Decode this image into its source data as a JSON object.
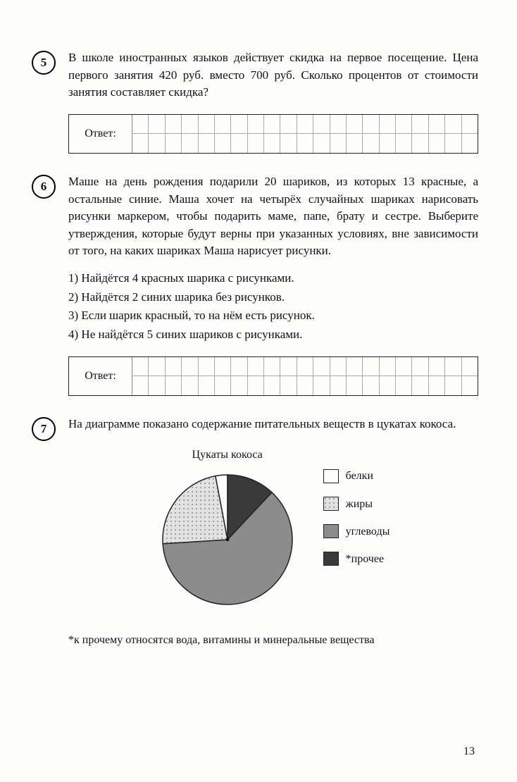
{
  "problems": {
    "p5": {
      "number": "5",
      "text": "В школе иностранных языков действует скидка на первое посещение. Цена первого занятия 420 руб. вместо 700 руб. Сколько процентов от стоимости занятия составляет скидка?",
      "answer_label": "Ответ:"
    },
    "p6": {
      "number": "6",
      "text": "Маше на день рождения подарили 20 шариков, из которых 13 красные, а остальные синие. Маша хочет на четырёх случайных шариках нарисовать рисунки маркером, чтобы подарить маме, папе, брату и сестре. Выберите утверждения, которые будут верны при указанных условиях, вне зависимости от того, на каких шариках Маша нарисует рисунки.",
      "options": [
        "1) Найдётся 4 красных шарика с рисунками.",
        "2) Найдётся 2 синих шарика без рисунков.",
        "3) Если шарик красный, то на нём есть рисунок.",
        "4) Не найдётся 5 синих шариков с рисунками."
      ],
      "answer_label": "Ответ:"
    },
    "p7": {
      "number": "7",
      "text": "На диаграмме показано содержание питательных веществ в цукатах кокоса.",
      "chart": {
        "type": "pie",
        "title": "Цукаты кокоса",
        "radius": 92,
        "center_dot": true,
        "slices": [
          {
            "label": "белки",
            "value": 3,
            "fill": "#fdfdfc",
            "pattern": "none"
          },
          {
            "label": "*прочее",
            "value": 12,
            "fill": "#3a3a3a",
            "pattern": "none"
          },
          {
            "label": "углеводы",
            "value": 62,
            "fill": "#8c8c8c",
            "pattern": "none"
          },
          {
            "label": "жиры",
            "value": 23,
            "fill": "#d8d8d8",
            "pattern": "dots"
          }
        ],
        "legend_order": [
          "белки",
          "жиры",
          "углеводы",
          "*прочее"
        ],
        "stroke": "#222",
        "stroke_width": 1.5
      },
      "footnote": "*к прочему относятся вода, витамины и минеральные вещества"
    }
  },
  "grid": {
    "cells_per_row": 21
  },
  "page_number": "13",
  "colors": {
    "white": "#fdfdfc",
    "dots": "#d8d8d8",
    "gray": "#8c8c8c",
    "dark": "#3a3a3a"
  }
}
